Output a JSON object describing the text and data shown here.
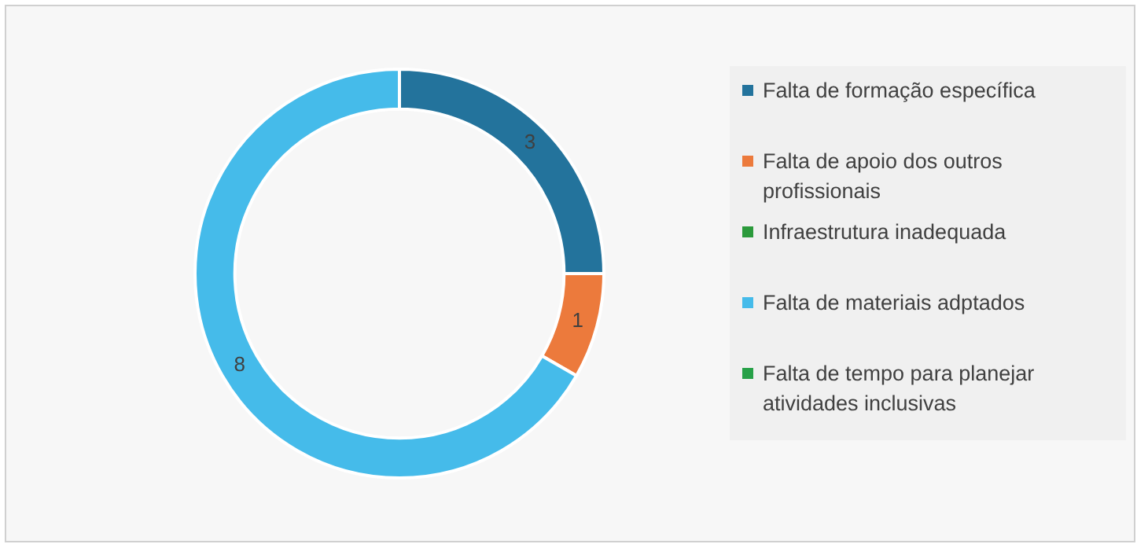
{
  "chart_data": {
    "type": "donut",
    "categories": [
      "Falta de formação específica",
      "Falta de apoio dos outros profissionais",
      "Infraestrutura inadequada",
      "Falta de materiais adptados",
      "Falta de tempo para planejar atividades inclusivas"
    ],
    "values": [
      3,
      1,
      0,
      8,
      0
    ],
    "colors": [
      "#23739c",
      "#ec7a3c",
      "#2b9a3b",
      "#45bbea",
      "#27a148"
    ],
    "value_labels": [
      "3",
      "1",
      null,
      "8",
      null
    ],
    "legend": "right"
  }
}
